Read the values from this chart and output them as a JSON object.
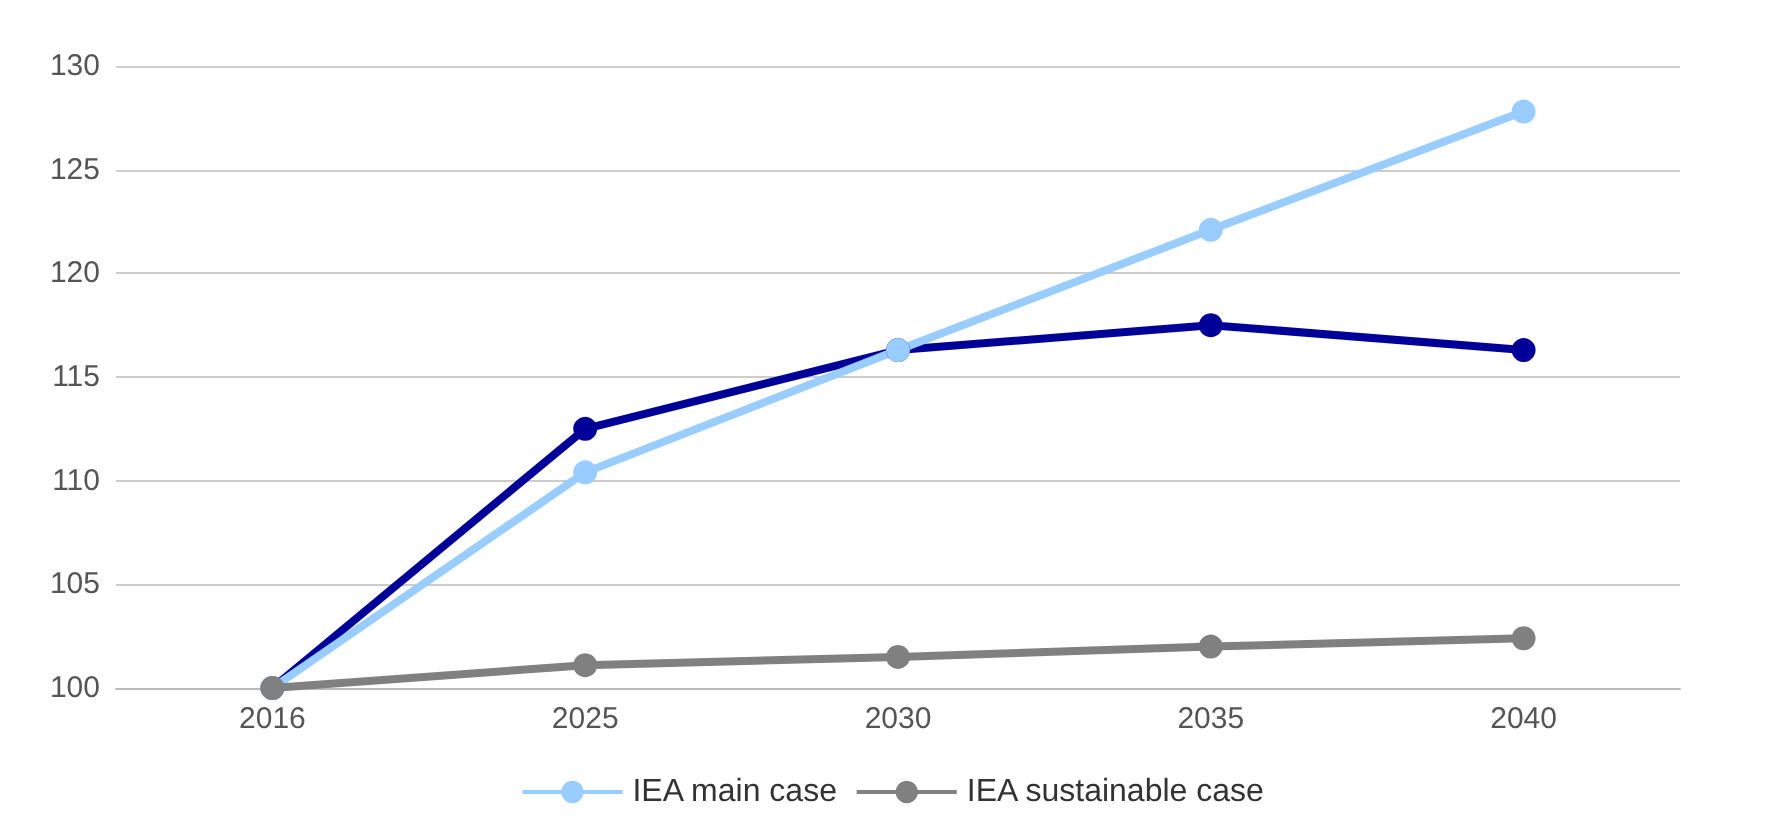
{
  "chart_data": {
    "type": "line",
    "categories": [
      "2016",
      "2025",
      "2030",
      "2035",
      "2040"
    ],
    "series": [
      {
        "color": "#000099",
        "values": [
          100,
          112.5,
          116.3,
          117.5,
          116.3
        ]
      },
      {
        "name": "IEA main case",
        "color": "#99ccff",
        "values": [
          100,
          110.4,
          116.3,
          122.1,
          127.8
        ]
      },
      {
        "name": "IEA sustainable case",
        "color": "#808080",
        "values": [
          100,
          101.1,
          101.5,
          102.0,
          102.4
        ]
      }
    ],
    "ylim": [
      100,
      130
    ],
    "yticks": [
      100,
      105,
      110,
      115,
      120,
      125,
      130
    ],
    "grid": "y",
    "legend": "bottom",
    "marker": "circle",
    "line_style": "solid"
  }
}
